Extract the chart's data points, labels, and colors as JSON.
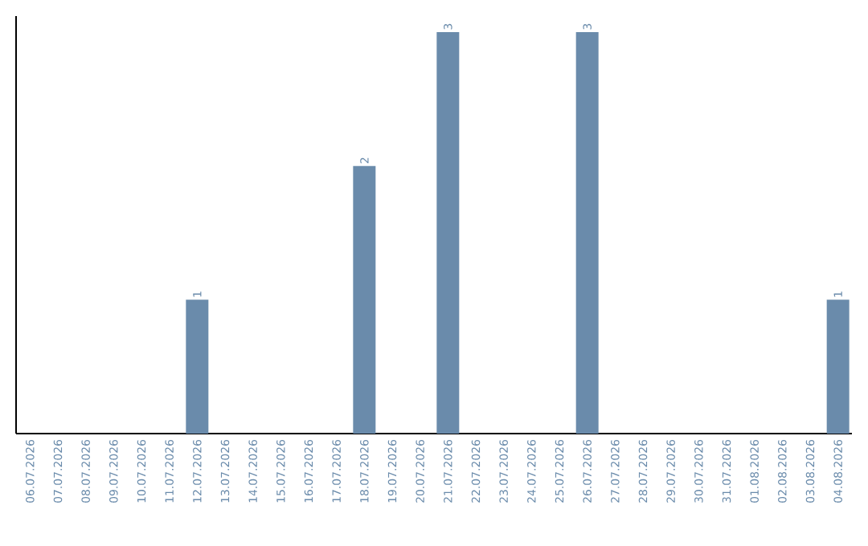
{
  "chart_data": {
    "type": "bar",
    "categories": [
      "06.07.2026",
      "07.07.2026",
      "08.07.2026",
      "09.07.2026",
      "10.07.2026",
      "11.07.2026",
      "12.07.2026",
      "13.07.2026",
      "14.07.2026",
      "15.07.2026",
      "16.07.2026",
      "17.07.2026",
      "18.07.2026",
      "19.07.2026",
      "20.07.2026",
      "21.07.2026",
      "22.07.2026",
      "23.07.2026",
      "24.07.2026",
      "25.07.2026",
      "26.07.2026",
      "27.07.2026",
      "28.07.2026",
      "29.07.2026",
      "30.07.2026",
      "31.07.2026",
      "01.08.2026",
      "02.08.2026",
      "03.08.2026",
      "04.08.2026"
    ],
    "values": [
      0,
      0,
      0,
      0,
      0,
      0,
      1,
      0,
      0,
      0,
      0,
      0,
      2,
      0,
      0,
      3,
      0,
      0,
      0,
      0,
      3,
      0,
      0,
      0,
      0,
      0,
      0,
      0,
      0,
      1
    ],
    "value_labels": [
      null,
      null,
      null,
      null,
      null,
      null,
      "1",
      null,
      null,
      null,
      null,
      null,
      "2",
      null,
      null,
      "3",
      null,
      null,
      null,
      null,
      "3",
      null,
      null,
      null,
      null,
      null,
      null,
      null,
      null,
      "1"
    ],
    "color": "#6a8bab",
    "ylim": [
      0,
      3.12
    ],
    "tick_labels": "x"
  }
}
